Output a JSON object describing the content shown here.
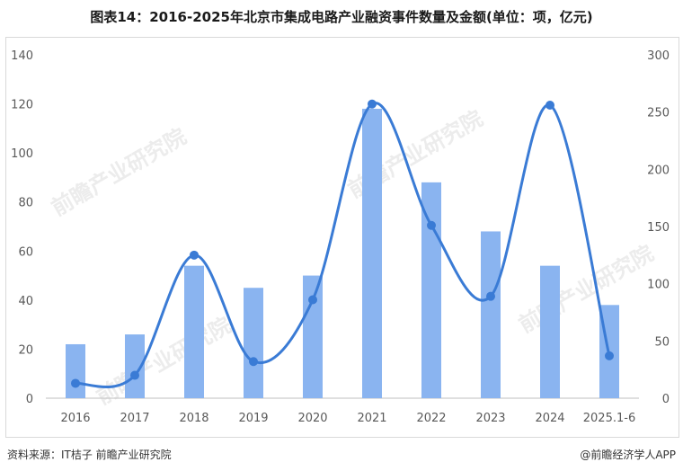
{
  "title": "图表14：2016-2025年北京市集成电路产业融资事件数量及金额(单位：项，亿元)",
  "footer": {
    "source": "资料来源：IT桔子 前瞻产业研究院",
    "brand": "@前瞻经济学人APP"
  },
  "watermark_text": "前瞻产业研究院",
  "colors": {
    "bar": "#8ab4f0",
    "line": "#3a7bd5",
    "grid": "#e0e0e0"
  },
  "chart_data": {
    "type": "bar",
    "categories": [
      "2016",
      "2017",
      "2018",
      "2019",
      "2020",
      "2021",
      "2022",
      "2023",
      "2024",
      "2025.1-6"
    ],
    "series": [
      {
        "type": "bar",
        "axis": "left",
        "values": [
          22,
          26,
          54,
          45,
          50,
          118,
          88,
          68,
          54,
          38
        ]
      },
      {
        "type": "line",
        "smooth": true,
        "axis": "right",
        "values": [
          13,
          20,
          125,
          32,
          86,
          257,
          151,
          89,
          256,
          37
        ]
      }
    ],
    "y_left": {
      "ylim": [
        0,
        140
      ],
      "ticks": [
        "0",
        "20",
        "40",
        "60",
        "80",
        "100",
        "120",
        "140"
      ]
    },
    "y_right": {
      "ylim": [
        0,
        300
      ],
      "ticks": [
        "0",
        "50",
        "100",
        "150",
        "200",
        "250",
        "300"
      ]
    },
    "grid": false,
    "legend": "none"
  }
}
